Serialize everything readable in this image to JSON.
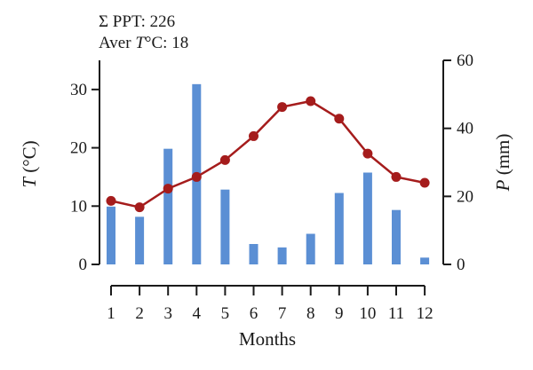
{
  "annotations": {
    "ppt_label": "Σ PPT: 226",
    "temp_label_prefix": "Aver ",
    "temp_label_var": "T",
    "temp_label_suffix": "°C: 18"
  },
  "chart_data": {
    "type": "bar+line",
    "xlabel": "Months",
    "categories": [
      "1",
      "2",
      "3",
      "4",
      "5",
      "6",
      "7",
      "8",
      "9",
      "10",
      "11",
      "12"
    ],
    "y_left": {
      "label_var": "T",
      "label_unit": " (°C)",
      "ylim": [
        0,
        35
      ],
      "ticks": [
        0,
        10,
        20,
        30
      ]
    },
    "y_right": {
      "label_var": "P",
      "label_unit": " (mm)",
      "ylim": [
        0,
        60
      ],
      "ticks": [
        0,
        20,
        40,
        60
      ]
    },
    "series": [
      {
        "kind": "bar",
        "axis": "right",
        "color": "#5b8fd4",
        "values": [
          17,
          14,
          34,
          53,
          22,
          6,
          5,
          9,
          21,
          27,
          16,
          2
        ]
      },
      {
        "kind": "line",
        "axis": "left",
        "color": "#a51c1c",
        "values": [
          10.9,
          9.8,
          13,
          15,
          17.9,
          22,
          27,
          28,
          25,
          19,
          15,
          14
        ]
      }
    ],
    "grid": false
  }
}
